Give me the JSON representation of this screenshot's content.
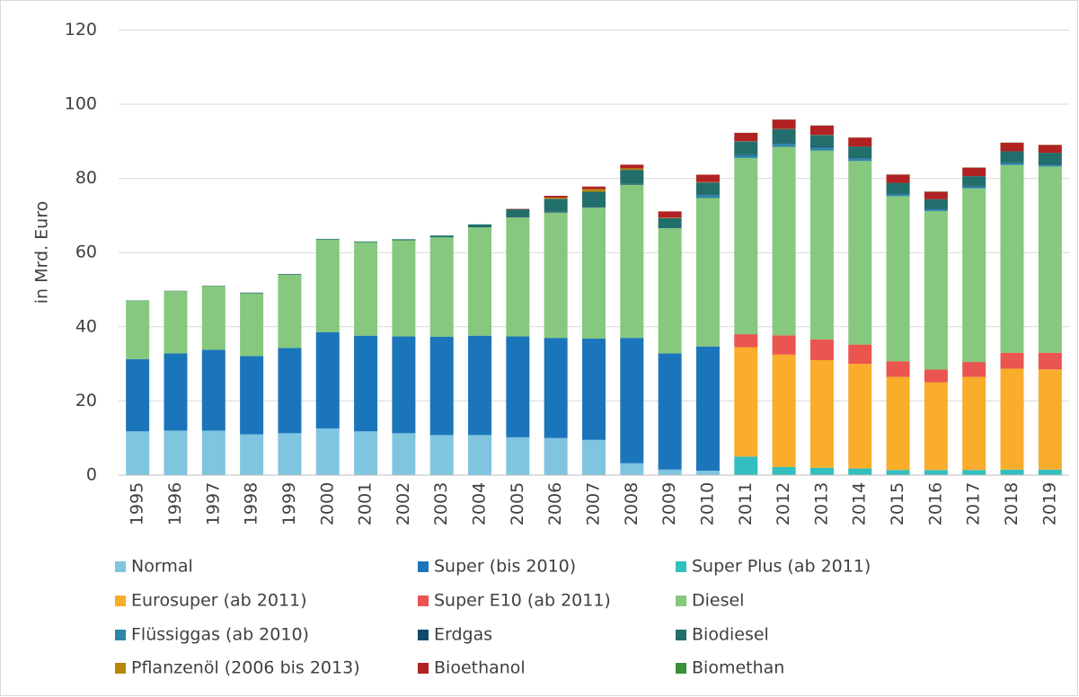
{
  "chart_data": {
    "type": "stacked_bar",
    "y_label": "in Mrd. Euro",
    "categories": [
      "1995",
      "1996",
      "1997",
      "1998",
      "1999",
      "2000",
      "2001",
      "2002",
      "2003",
      "2004",
      "2005",
      "2006",
      "2007",
      "2008",
      "2009",
      "2010",
      "2011",
      "2012",
      "2013",
      "2014",
      "2015",
      "2016",
      "2017",
      "2018",
      "2019"
    ],
    "ylim": [
      0,
      120
    ],
    "yticks": [
      0,
      20,
      40,
      60,
      80,
      100,
      120
    ],
    "grid": true,
    "series": [
      {
        "name": "Normal",
        "color": "#7fc5e0",
        "values": [
          11.8,
          12,
          12,
          11,
          11.3,
          12.6,
          11.8,
          11.3,
          10.8,
          10.8,
          10.2,
          10,
          9.5,
          3.2,
          1.5,
          1.2,
          null,
          null,
          null,
          null,
          null,
          null,
          null,
          null,
          null
        ]
      },
      {
        "name": "Super (bis 2010)",
        "color": "#1b75bb",
        "values": [
          19.5,
          20.8,
          21.8,
          21.1,
          23,
          25.9,
          25.8,
          26.1,
          26.5,
          26.8,
          27.2,
          27,
          27.3,
          33.8,
          31.3,
          33.5,
          null,
          null,
          null,
          null,
          null,
          null,
          null,
          null,
          null
        ]
      },
      {
        "name": "Super Plus (ab 2011)",
        "color": "#33bfbf",
        "values": [
          null,
          null,
          null,
          null,
          null,
          null,
          null,
          null,
          null,
          null,
          null,
          null,
          null,
          null,
          null,
          null,
          5,
          2.2,
          2,
          1.8,
          1.4,
          1.4,
          1.4,
          1.5,
          1.5
        ]
      },
      {
        "name": "Eurosuper (ab 2011)",
        "color": "#f9ad2a",
        "values": [
          null,
          null,
          null,
          null,
          null,
          null,
          null,
          null,
          null,
          null,
          null,
          null,
          null,
          null,
          null,
          null,
          29.5,
          30.3,
          29,
          28.2,
          25.1,
          23.6,
          25.1,
          27.2,
          27
        ]
      },
      {
        "name": "Super E10 (ab 2011)",
        "color": "#ea5550",
        "values": [
          null,
          null,
          null,
          null,
          null,
          null,
          null,
          null,
          null,
          null,
          null,
          null,
          null,
          null,
          null,
          null,
          3.5,
          5.2,
          5.6,
          5.2,
          4.2,
          3.5,
          4,
          4.3,
          4.5
        ]
      },
      {
        "name": "Diesel",
        "color": "#86c87e",
        "values": [
          15.7,
          16.8,
          17.2,
          16.9,
          19.7,
          25,
          25.2,
          25.9,
          26.8,
          29.2,
          32.1,
          33.8,
          35.4,
          41.3,
          33.8,
          40,
          47.5,
          50.8,
          50.9,
          49.5,
          44.5,
          42.7,
          46.8,
          50.6,
          50.2
        ]
      },
      {
        "name": "Flüssiggas (ab 2010)",
        "color": "#2e86ab",
        "values": [
          null,
          null,
          null,
          null,
          null,
          null,
          null,
          null,
          null,
          null,
          null,
          null,
          null,
          null,
          null,
          0.8,
          0.8,
          0.8,
          0.8,
          0.7,
          0.6,
          0.5,
          0.5,
          0.5,
          0.5
        ]
      },
      {
        "name": "Erdgas",
        "color": "#0f4a6b",
        "values": [
          null,
          null,
          null,
          null,
          null,
          null,
          null,
          null,
          null,
          null,
          0.2,
          0.2,
          0.2,
          0.2,
          0.2,
          0.2,
          0.2,
          0.2,
          0.2,
          0.2,
          0.2,
          0.2,
          0.2,
          0.2,
          0.2
        ]
      },
      {
        "name": "Biodiesel",
        "color": "#226e6b",
        "values": [
          0.1,
          0.1,
          0.1,
          0.2,
          0.2,
          0.2,
          0.2,
          0.3,
          0.5,
          0.8,
          2,
          3.5,
          4,
          3.8,
          2.5,
          3.2,
          3.5,
          3.8,
          3.2,
          3,
          2.8,
          2.5,
          2.6,
          3,
          3
        ]
      },
      {
        "name": "Pflanzenöl (2006 bis 2013)",
        "color": "#b8860b",
        "values": [
          null,
          null,
          null,
          null,
          null,
          null,
          null,
          null,
          null,
          null,
          null,
          0.3,
          0.7,
          0.4,
          0.1,
          0.1,
          0.05,
          0.05,
          0.05,
          null,
          null,
          null,
          null,
          null,
          null
        ]
      },
      {
        "name": "Bioethanol",
        "color": "#b22222",
        "values": [
          null,
          null,
          null,
          null,
          null,
          null,
          null,
          null,
          null,
          null,
          0.1,
          0.5,
          0.7,
          1,
          1.7,
          2,
          2.2,
          2.5,
          2.5,
          2.4,
          2.2,
          2,
          2.3,
          2.3,
          2.1
        ]
      },
      {
        "name": "Biomethan",
        "color": "#3a8f3a",
        "values": [
          null,
          null,
          null,
          null,
          null,
          null,
          null,
          null,
          null,
          null,
          null,
          null,
          null,
          null,
          null,
          null,
          0.05,
          0.05,
          0.05,
          0.05,
          0.05,
          0.05,
          0.05,
          0.05,
          0.05
        ]
      }
    ]
  }
}
